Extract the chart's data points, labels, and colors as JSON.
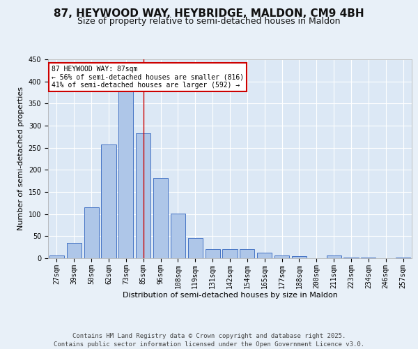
{
  "title1": "87, HEYWOOD WAY, HEYBRIDGE, MALDON, CM9 4BH",
  "title2": "Size of property relative to semi-detached houses in Maldon",
  "xlabel": "Distribution of semi-detached houses by size in Maldon",
  "ylabel": "Number of semi-detached properties",
  "categories": [
    "27sqm",
    "39sqm",
    "50sqm",
    "62sqm",
    "73sqm",
    "85sqm",
    "96sqm",
    "108sqm",
    "119sqm",
    "131sqm",
    "142sqm",
    "154sqm",
    "165sqm",
    "177sqm",
    "188sqm",
    "200sqm",
    "211sqm",
    "223sqm",
    "234sqm",
    "246sqm",
    "257sqm"
  ],
  "values": [
    7,
    35,
    115,
    258,
    380,
    282,
    181,
    101,
    46,
    21,
    21,
    21,
    12,
    7,
    4,
    0,
    7,
    2,
    1,
    0,
    2
  ],
  "bar_color": "#aec6e8",
  "bar_edge_color": "#4472c4",
  "marker_bin_index": 5,
  "annotation_text": "87 HEYWOOD WAY: 87sqm\n← 56% of semi-detached houses are smaller (816)\n41% of semi-detached houses are larger (592) →",
  "annotation_box_color": "#ffffff",
  "annotation_box_edge_color": "#cc0000",
  "vline_color": "#cc0000",
  "background_color": "#e8f0f8",
  "plot_bg_color": "#dce8f5",
  "grid_color": "#ffffff",
  "ylim": [
    0,
    450
  ],
  "yticks": [
    0,
    50,
    100,
    150,
    200,
    250,
    300,
    350,
    400,
    450
  ],
  "footer_text": "Contains HM Land Registry data © Crown copyright and database right 2025.\nContains public sector information licensed under the Open Government Licence v3.0.",
  "title_fontsize": 11,
  "subtitle_fontsize": 9,
  "axis_label_fontsize": 8,
  "tick_fontsize": 7,
  "annotation_fontsize": 7,
  "footer_fontsize": 6.5
}
